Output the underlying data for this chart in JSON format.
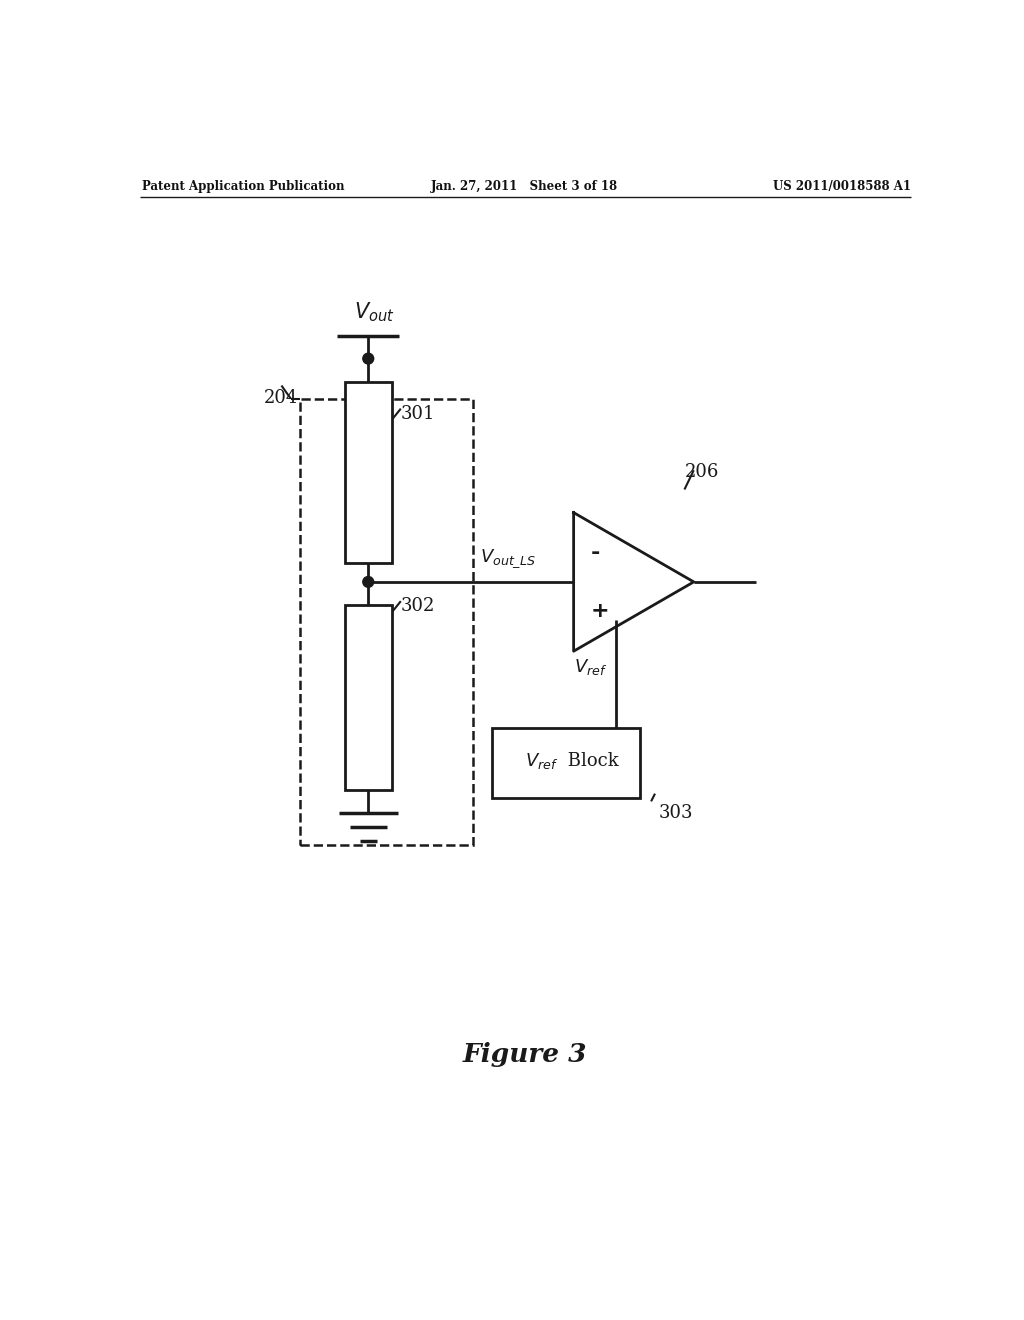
{
  "bg_color": "#ffffff",
  "line_color": "#1a1a1a",
  "line_width": 2.0,
  "header_left": "Patent Application Publication",
  "header_mid": "Jan. 27, 2011   Sheet 3 of 18",
  "header_right": "US 2011/0018588 A1",
  "figure_label": "Figure 3",
  "label_204": "204",
  "label_301": "301",
  "label_302": "302",
  "label_206": "206",
  "label_303": "303",
  "label_block": " Block",
  "minus_sign": "-",
  "plus_sign": "+"
}
